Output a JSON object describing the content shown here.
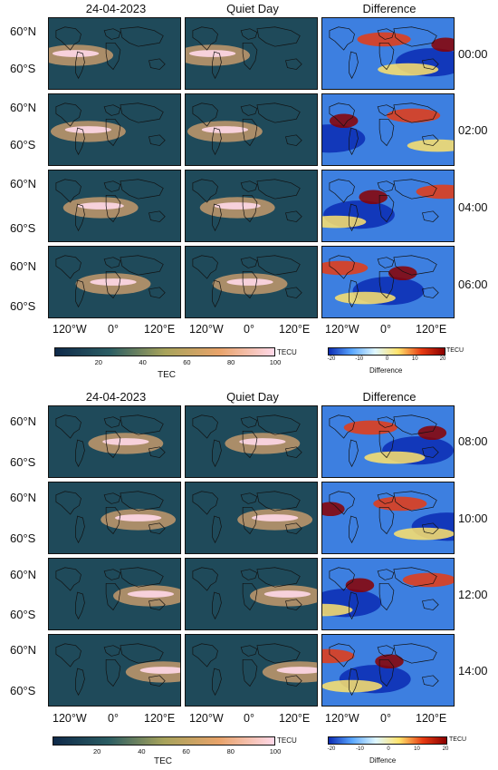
{
  "figure": {
    "column_titles": [
      "24-04-2023",
      "Quiet Day",
      "Difference"
    ],
    "lat_labels": [
      "60°N",
      "60°S"
    ],
    "lon_labels": [
      "120°W",
      "0°",
      "120°E"
    ],
    "block1_times": [
      "00:00",
      "02:00",
      "04:00",
      "06:00"
    ],
    "block2_times": [
      "08:00",
      "10:00",
      "12:00",
      "14:00"
    ]
  },
  "colorbars": {
    "tec": {
      "unit": "TECU",
      "title": "TEC",
      "ticks": [
        "20",
        "40",
        "60",
        "80",
        "100"
      ],
      "range": [
        0,
        100
      ],
      "colors": [
        "#0f2a4a",
        "#2b5d63",
        "#a7a35b",
        "#e8a36a",
        "#ffd8e8"
      ]
    },
    "difference": {
      "unit": "TECU",
      "title_block1": "Difference",
      "title_block2": "Diffence",
      "ticks": [
        "-20",
        "-10",
        "0",
        "10",
        "20"
      ],
      "range": [
        -20,
        20
      ],
      "colors": [
        "#0b2bb3",
        "#5aa7ff",
        "#dff7ff",
        "#ffe36b",
        "#e83b12",
        "#8a0000"
      ]
    }
  }
}
